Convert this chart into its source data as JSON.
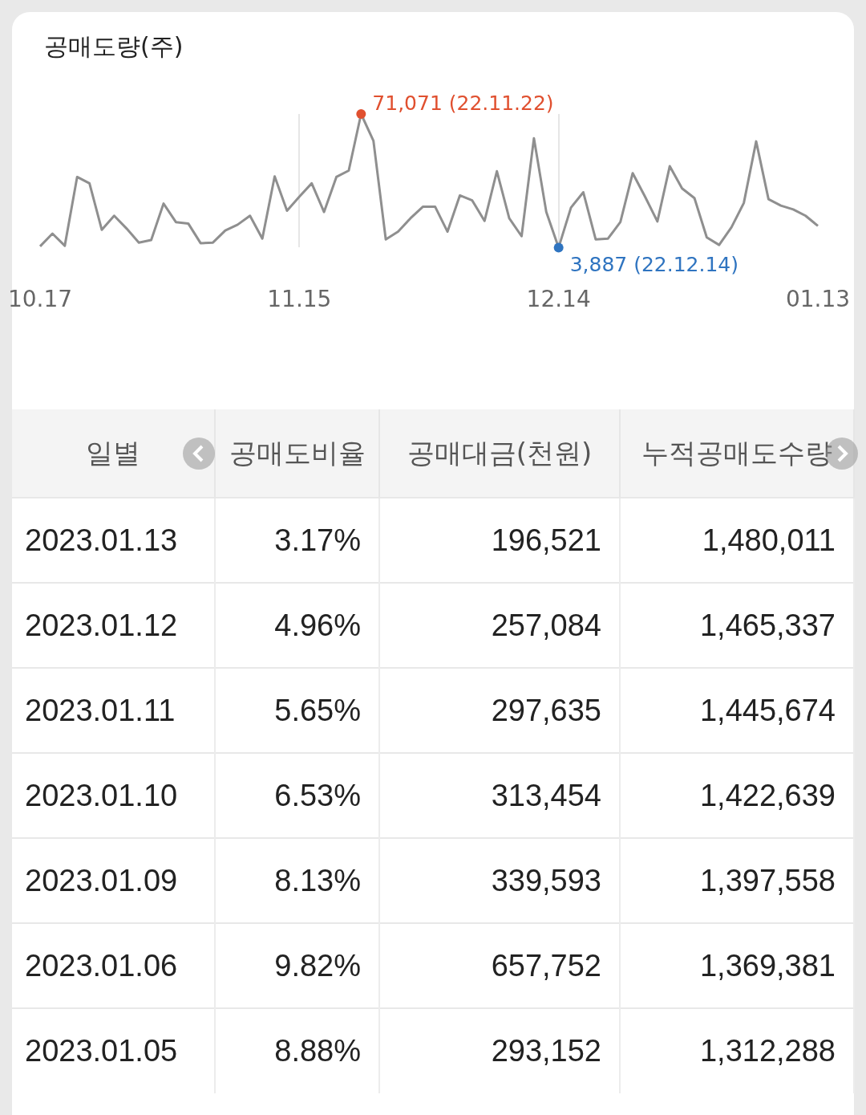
{
  "chart_data": [
    {
      "type": "line",
      "title": "공매도량(주)",
      "grid": "x",
      "categories": [
        "10.17",
        null,
        null,
        null,
        null,
        null,
        null,
        null,
        null,
        null,
        null,
        null,
        null,
        null,
        null,
        null,
        null,
        null,
        null,
        null,
        null,
        "11.15",
        null,
        null,
        null,
        null,
        null,
        null,
        null,
        null,
        null,
        null,
        null,
        null,
        null,
        null,
        null,
        null,
        null,
        null,
        null,
        null,
        "12.14",
        null,
        null,
        null,
        null,
        null,
        null,
        null,
        null,
        null,
        null,
        null,
        null,
        null,
        null,
        null,
        null,
        null,
        null,
        null,
        null,
        "01.13"
      ],
      "series": [
        {
          "color": "#8f8f8f",
          "values": [
            4500,
            10900,
            4800,
            39400,
            36200,
            12800,
            19900,
            13500,
            6400,
            7700,
            26000,
            16700,
            16000,
            6100,
            6400,
            12500,
            15400,
            19900,
            8400,
            39700,
            22400,
            29500,
            36200,
            21800,
            39400,
            42600,
            71071,
            57600,
            8000,
            11900,
            18600,
            24400,
            24400,
            11900,
            30100,
            27600,
            17300,
            42300,
            18600,
            9600,
            58900,
            21800,
            3887,
            24000,
            31700,
            8000,
            8400,
            16700,
            41300,
            29500,
            17000,
            44800,
            33600,
            28800,
            9000,
            5200,
            14100,
            26300,
            57300,
            28200,
            25000,
            23100,
            19900,
            14800
          ],
          "colors": [
            null,
            null,
            null,
            null,
            null,
            null,
            null,
            null,
            null,
            null,
            null,
            null,
            null,
            null,
            null,
            null,
            null,
            null,
            null,
            null,
            null,
            null,
            null,
            null,
            null,
            null,
            "#e0502f",
            null,
            null,
            null,
            null,
            null,
            null,
            null,
            null,
            null,
            null,
            null,
            null,
            null,
            null,
            null,
            "#2f74c0",
            null,
            null,
            null,
            null,
            null,
            null,
            null,
            null,
            null,
            null,
            null,
            null,
            null,
            null,
            null,
            null,
            null,
            null,
            null,
            null,
            null
          ],
          "value_labels": [
            null,
            null,
            null,
            null,
            null,
            null,
            null,
            null,
            null,
            null,
            null,
            null,
            null,
            null,
            null,
            null,
            null,
            null,
            null,
            null,
            null,
            null,
            null,
            null,
            null,
            null,
            "71,071 (22.11.22)",
            null,
            null,
            null,
            null,
            null,
            null,
            null,
            null,
            null,
            null,
            null,
            null,
            null,
            null,
            null,
            "3,887 (22.12.14)",
            null,
            null,
            null,
            null,
            null,
            null,
            null,
            null,
            null,
            null,
            null,
            null,
            null,
            null,
            null,
            null,
            null,
            null,
            null,
            null,
            null
          ]
        }
      ]
    },
    {
      "type": "other",
      "xlabel": "일별",
      "categories": [
        "2023.01.13",
        "2023.01.12",
        "2023.01.11",
        "2023.01.10",
        "2023.01.09",
        "2023.01.06",
        "2023.01.05"
      ],
      "series": [
        {
          "name": "공매도비율",
          "values": [
            3.17,
            4.96,
            5.65,
            6.53,
            8.13,
            9.82,
            8.88
          ],
          "value_labels": [
            "3.17%",
            "4.96%",
            "5.65%",
            "6.53%",
            "8.13%",
            "9.82%",
            "8.88%"
          ]
        },
        {
          "name": "공매대금(천원)",
          "values": [
            196521,
            257084,
            297635,
            313454,
            339593,
            657752,
            293152
          ],
          "value_labels": [
            "196,521",
            "257,084",
            "297,635",
            "313,454",
            "339,593",
            "657,752",
            "293,152"
          ]
        },
        {
          "name": "누적공매도수량",
          "values": [
            1480011,
            1465337,
            1445674,
            1422639,
            1397558,
            1369381,
            1312288
          ],
          "value_labels": [
            "1,480,011",
            "1,465,337",
            "1,445,674",
            "1,422,639",
            "1,397,558",
            "1,369,381",
            "1,312,288"
          ]
        }
      ]
    }
  ]
}
